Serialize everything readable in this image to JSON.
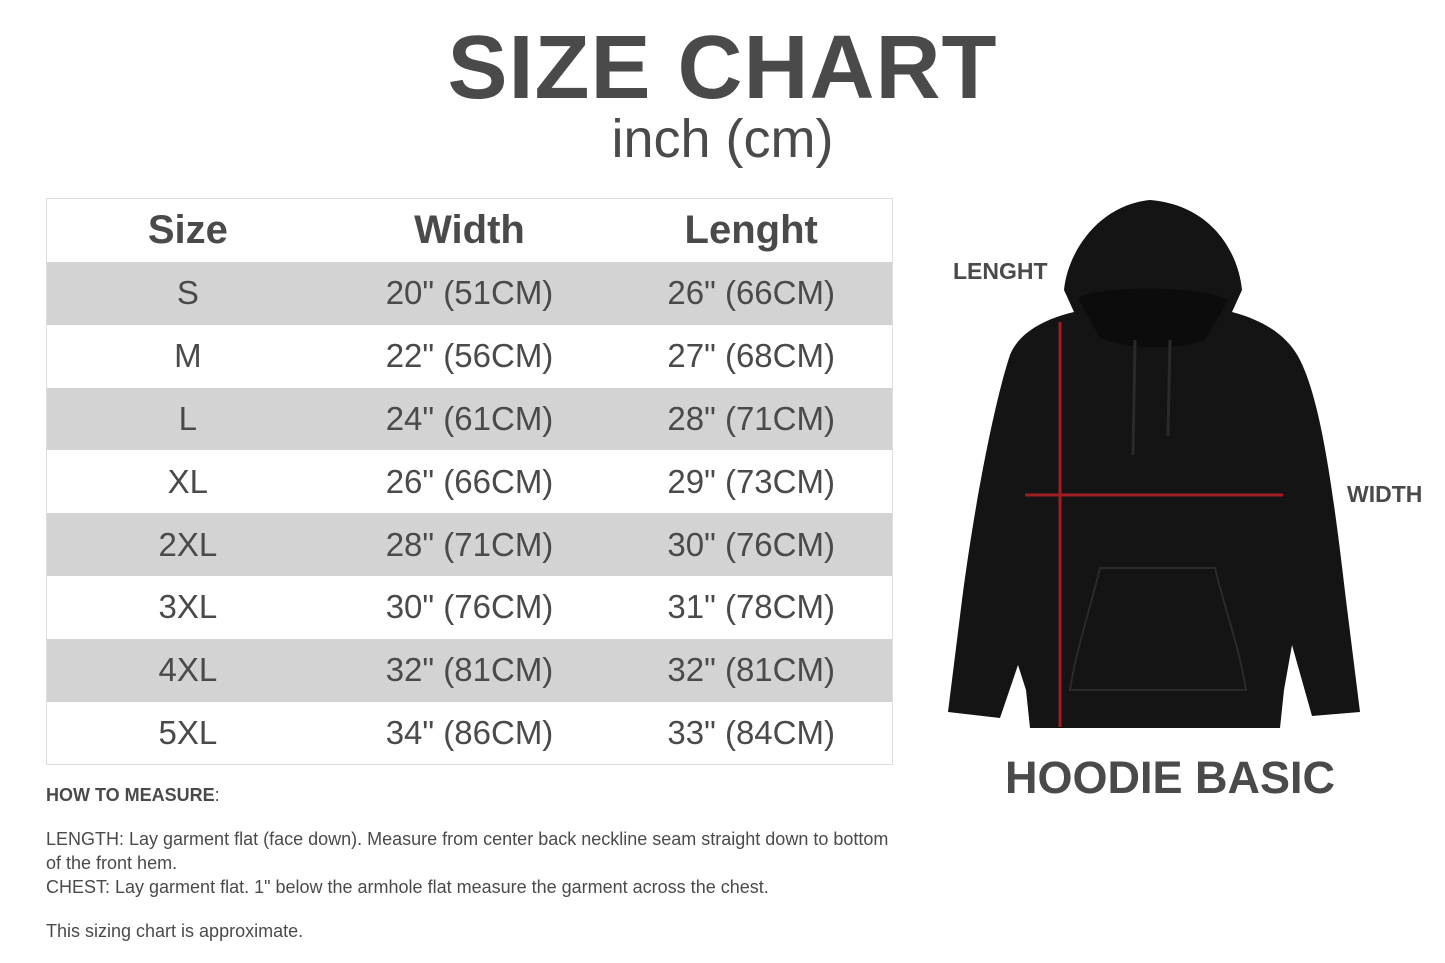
{
  "header": {
    "title": "SIZE CHART",
    "subtitle": "inch (cm)"
  },
  "table": {
    "columns": [
      "Size",
      "Width",
      "Lenght"
    ],
    "rows": [
      [
        "S",
        "20\" (51CM)",
        "26\" (66CM)"
      ],
      [
        "M",
        "22\" (56CM)",
        "27\" (68CM)"
      ],
      [
        "L",
        "24\" (61CM)",
        "28\" (71CM)"
      ],
      [
        "XL",
        "26\" (66CM)",
        "29\" (73CM)"
      ],
      [
        "2XL",
        "28\" (71CM)",
        "30\" (76CM)"
      ],
      [
        "3XL",
        "30\" (76CM)",
        "31\" (78CM)"
      ],
      [
        "4XL",
        "32\" (81CM)",
        "32\" (81CM)"
      ],
      [
        "5XL",
        "34\" (86CM)",
        "33\" (84CM)"
      ]
    ]
  },
  "notes": {
    "heading": "HOW TO MEASURE",
    "length": "LENGTH: Lay garment flat (face down). Measure from center back neckline seam straight down to bottom of the front hem.",
    "chest": "CHEST: Lay garment flat. 1\" below the armhole flat measure the garment across the chest.",
    "disclaimer": "This sizing chart is approximate."
  },
  "diagram": {
    "length_label": "LENGHT",
    "width_label": "WIDTH",
    "product_name": "HOODIE BASIC",
    "garment_color": "#141414",
    "measure_line_color": "#a01d22"
  }
}
